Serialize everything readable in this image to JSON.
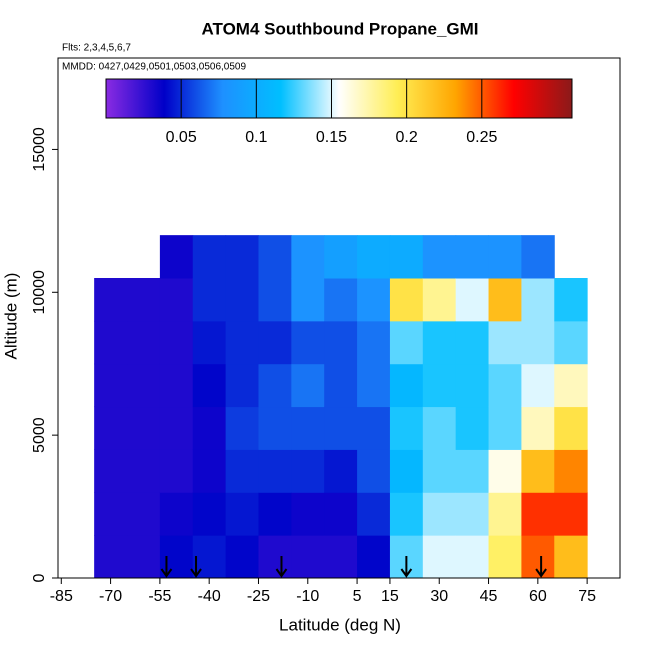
{
  "chart_data": {
    "type": "heatmap",
    "title": "ATOM4 Southbound Propane_GMI",
    "subtitle": "Flts: 2,3,4,5,6,7",
    "annotation": "MMDD: 0427,0429,0501,0503,0506,0509",
    "x_label": "Latitude (deg N)",
    "y_label": "Altitude (m)",
    "xlim": [
      -86,
      85
    ],
    "ylim": [
      0,
      18200
    ],
    "xticks": [
      -85,
      -70,
      -55,
      -40,
      -25,
      -10,
      5,
      15,
      30,
      45,
      60,
      75
    ],
    "yticks": [
      0,
      5000,
      10000,
      15000
    ],
    "x_edges": [
      -75,
      -65,
      -55,
      -45,
      -35,
      -25,
      -15,
      -5,
      5,
      15,
      25,
      35,
      45,
      55,
      65,
      75
    ],
    "y_edges": [
      0,
      1500,
      3000,
      4500,
      6000,
      7500,
      9000,
      10500,
      12000
    ],
    "values": [
      [
        0.03,
        0.03,
        0.03,
        0.03,
        0.03,
        0.03,
        0.03,
        null
      ],
      [
        0.03,
        0.03,
        0.03,
        0.03,
        0.03,
        0.03,
        0.03,
        null
      ],
      [
        0.04,
        0.035,
        0.03,
        0.03,
        0.03,
        0.03,
        0.03,
        0.035
      ],
      [
        0.045,
        0.04,
        0.035,
        0.035,
        0.04,
        0.045,
        0.05,
        0.05
      ],
      [
        0.04,
        0.045,
        0.05,
        0.055,
        0.05,
        0.05,
        0.05,
        0.05
      ],
      [
        0.03,
        0.04,
        0.05,
        0.06,
        0.06,
        0.05,
        0.06,
        0.06
      ],
      [
        0.03,
        0.035,
        0.05,
        0.06,
        0.07,
        0.06,
        0.08,
        0.08
      ],
      [
        0.03,
        0.035,
        0.045,
        0.06,
        0.06,
        0.06,
        0.07,
        0.09
      ],
      [
        0.04,
        0.05,
        0.06,
        0.06,
        0.07,
        0.07,
        0.08,
        0.1
      ],
      [
        0.13,
        0.12,
        0.11,
        0.12,
        0.11,
        0.13,
        0.2,
        0.1
      ],
      [
        0.15,
        0.14,
        0.13,
        0.13,
        0.12,
        0.12,
        0.18,
        0.08
      ],
      [
        0.15,
        0.14,
        0.13,
        0.12,
        0.12,
        0.12,
        0.15,
        0.08
      ],
      [
        0.19,
        0.18,
        0.16,
        0.13,
        0.13,
        0.14,
        0.22,
        0.08
      ],
      [
        0.25,
        0.26,
        0.22,
        0.17,
        0.15,
        0.14,
        0.14,
        0.07
      ],
      [
        0.22,
        0.26,
        0.24,
        0.2,
        0.17,
        0.13,
        0.12,
        null
      ]
    ],
    "zlim": [
      0,
      0.31
    ],
    "zticks": [
      0.05,
      0.1,
      0.15,
      0.2,
      0.25
    ],
    "colors": [
      "#8a2be2",
      "#0000c8",
      "#1e90ff",
      "#00bfff",
      "#ffffff",
      "#ffee55",
      "#ffa500",
      "#ff0000",
      "#8b1a1a"
    ],
    "arrows_x": [
      -53,
      -44,
      -18,
      20,
      61
    ]
  }
}
